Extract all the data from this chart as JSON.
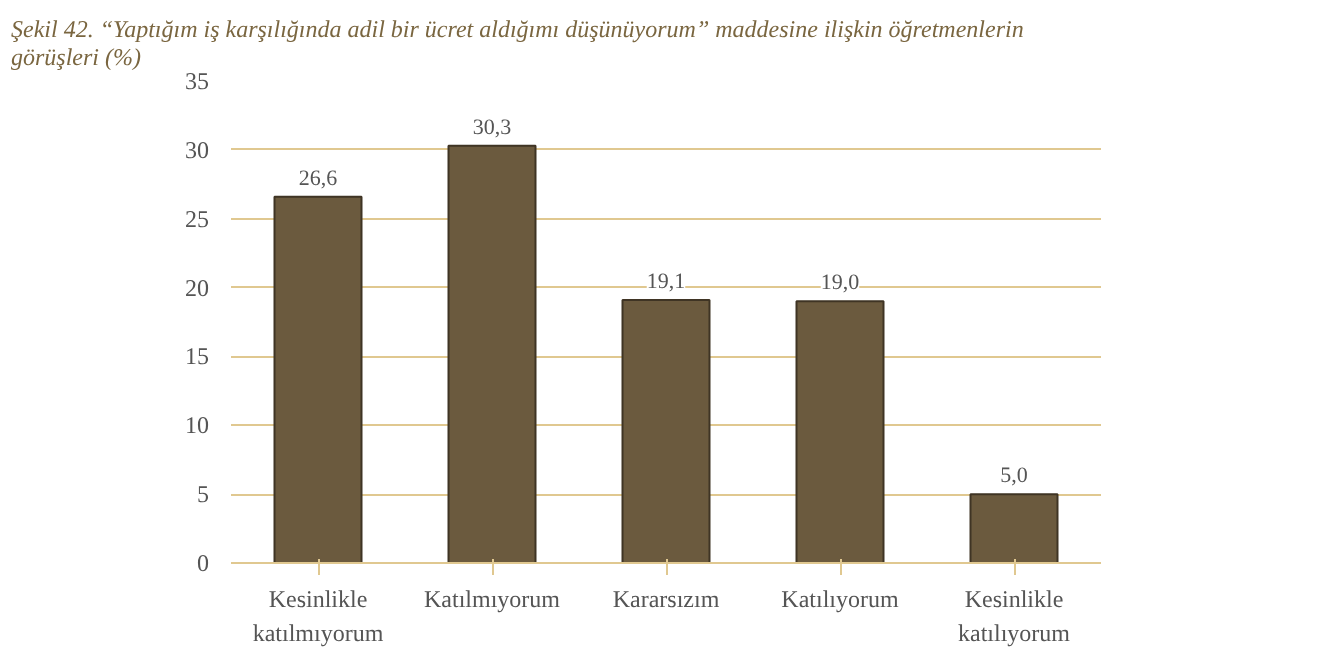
{
  "chart_data": {
    "type": "bar",
    "title": "Şekil 42. “Yaptığım iş karşılığında adil bir ücret aldığımı düşünüyorum” maddesine ilişkin öğretmenlerin görüşleri (%)",
    "categories": [
      "Kesinlikle katılmıyorum",
      "Katılmıyorum",
      "Kararsızım",
      "Katılıyorum",
      "Kesinlikle katılıyorum"
    ],
    "values": [
      26.6,
      30.3,
      19.1,
      19.0,
      5.0
    ],
    "value_labels": [
      "26,6",
      "30,3",
      "19,1",
      "19,0",
      "5,0"
    ],
    "color": "#6b5a3e",
    "ylim": [
      0,
      35
    ],
    "yticks": [
      0,
      5,
      10,
      15,
      20,
      25,
      30,
      35
    ],
    "grid": "y"
  }
}
